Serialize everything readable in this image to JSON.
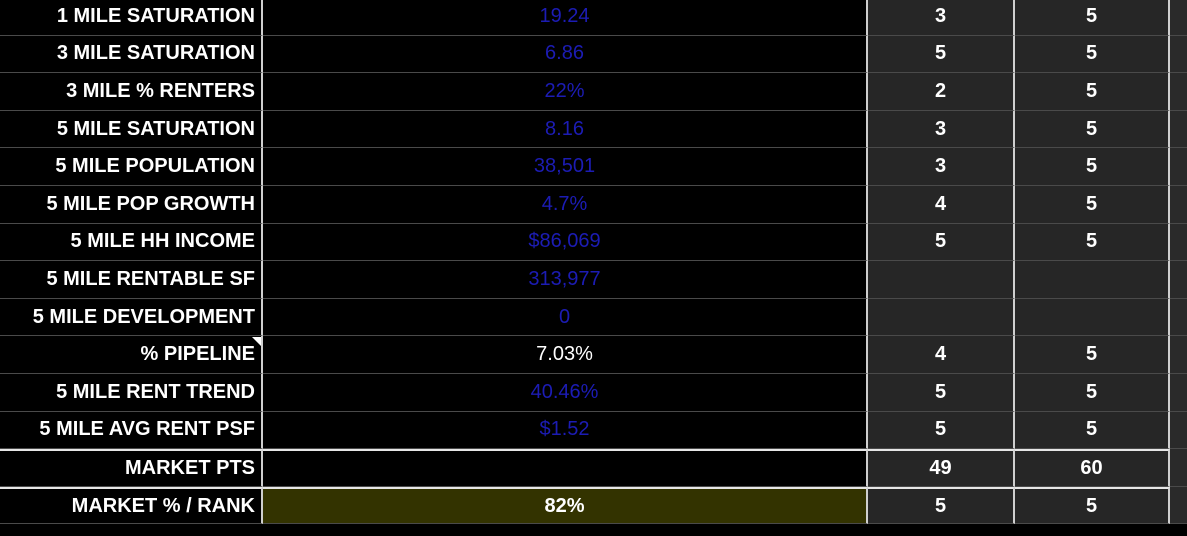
{
  "rows": [
    {
      "label": "1 MILE SATURATION",
      "value": "19.24",
      "value_color": "#1c1cb4",
      "pts": "3",
      "max": "5"
    },
    {
      "label": "3 MILE SATURATION",
      "value": "6.86",
      "value_color": "#1c1cb4",
      "pts": "5",
      "max": "5"
    },
    {
      "label": "3 MILE % RENTERS",
      "value": "22%",
      "value_color": "#1c1cb4",
      "pts": "2",
      "max": "5"
    },
    {
      "label": "5 MILE SATURATION",
      "value": "8.16",
      "value_color": "#1c1cb4",
      "pts": "3",
      "max": "5"
    },
    {
      "label": "5 MILE POPULATION",
      "value": "38,501",
      "value_color": "#1c1cb4",
      "pts": "3",
      "max": "5"
    },
    {
      "label": "5 MILE POP GROWTH",
      "value": "4.7%",
      "value_color": "#1c1cb4",
      "pts": "4",
      "max": "5"
    },
    {
      "label": "5 MILE HH INCOME",
      "value": "$86,069",
      "value_color": "#1c1cb4",
      "pts": "5",
      "max": "5"
    },
    {
      "label": "5 MILE RENTABLE SF",
      "value": "313,977",
      "value_color": "#1c1cb4"
    },
    {
      "label": "5 MILE DEVELOPMENT",
      "value": "0",
      "value_color": "#1c1cb4"
    },
    {
      "label": "% PIPELINE",
      "value": "7.03%",
      "value_color": "#ffffff",
      "pts": "4",
      "max": "5"
    },
    {
      "label": "5 MILE RENT TREND",
      "value": "40.46%",
      "value_color": "#1c1cb4",
      "pts": "5",
      "max": "5"
    },
    {
      "label": "5 MILE AVG RENT PSF",
      "value": "$1.52",
      "value_color": "#1c1cb4",
      "pts": "5",
      "max": "5"
    },
    {
      "label": "MARKET PTS",
      "pts": "49",
      "max": "60"
    },
    {
      "label": "MARKET % / RANK",
      "value": "82%",
      "value_color": "#ffffff",
      "pts": "5",
      "max": "5"
    }
  ]
}
